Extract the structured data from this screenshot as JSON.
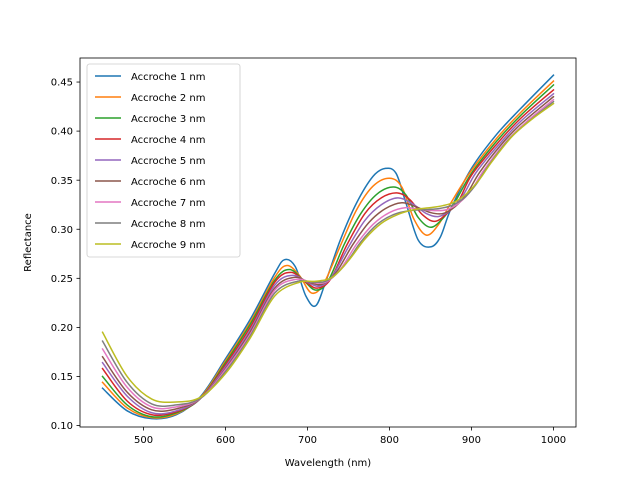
{
  "chart_data": {
    "type": "line",
    "title": "",
    "xlabel": "Wavelength (nm)",
    "ylabel": "Reflectance",
    "xlim": [
      422.5,
      1027.5
    ],
    "ylim": [
      0.0985,
      0.4745
    ],
    "xticks": [
      500,
      600,
      700,
      800,
      900,
      1000
    ],
    "yticks": [
      0.1,
      0.15,
      0.2,
      0.25,
      0.3,
      0.35,
      0.4,
      0.45
    ],
    "grid": false,
    "legend_position": "upper-left",
    "series": [
      {
        "name": "Accroche 1 nm",
        "color": "#1f77b4",
        "x": [
          450,
          480,
          510,
          540,
          570,
          600,
          630,
          660,
          672,
          685,
          698,
          710,
          722,
          740,
          760,
          780,
          795,
          808,
          820,
          835,
          850,
          862,
          875,
          900,
          930,
          960,
          1000
        ],
        "y": [
          0.138,
          0.115,
          0.107,
          0.111,
          0.13,
          0.168,
          0.208,
          0.255,
          0.269,
          0.262,
          0.232,
          0.222,
          0.246,
          0.289,
          0.327,
          0.354,
          0.362,
          0.357,
          0.327,
          0.289,
          0.282,
          0.292,
          0.321,
          0.362,
          0.396,
          0.423,
          0.457
        ]
      },
      {
        "name": "Accroche 2 nm",
        "color": "#ff7f0e",
        "x": [
          450,
          480,
          510,
          540,
          570,
          600,
          630,
          660,
          675,
          690,
          705,
          720,
          740,
          760,
          780,
          800,
          815,
          830,
          845,
          860,
          875,
          900,
          930,
          960,
          1000
        ],
        "y": [
          0.144,
          0.118,
          0.108,
          0.112,
          0.129,
          0.166,
          0.205,
          0.251,
          0.263,
          0.253,
          0.235,
          0.245,
          0.283,
          0.32,
          0.344,
          0.352,
          0.343,
          0.31,
          0.294,
          0.305,
          0.327,
          0.36,
          0.392,
          0.419,
          0.451
        ]
      },
      {
        "name": "Accroche 3 nm",
        "color": "#2ca02c",
        "x": [
          450,
          480,
          510,
          540,
          570,
          600,
          630,
          660,
          678,
          695,
          710,
          725,
          745,
          765,
          785,
          805,
          820,
          835,
          850,
          865,
          880,
          900,
          930,
          960,
          1000
        ],
        "y": [
          0.15,
          0.121,
          0.109,
          0.113,
          0.128,
          0.164,
          0.203,
          0.248,
          0.259,
          0.248,
          0.238,
          0.247,
          0.285,
          0.316,
          0.336,
          0.343,
          0.335,
          0.312,
          0.302,
          0.311,
          0.328,
          0.357,
          0.389,
          0.416,
          0.447
        ]
      },
      {
        "name": "Accroche 4 nm",
        "color": "#d62728",
        "x": [
          450,
          480,
          510,
          540,
          570,
          600,
          630,
          660,
          680,
          698,
          712,
          728,
          748,
          770,
          790,
          810,
          825,
          840,
          855,
          870,
          885,
          900,
          930,
          960,
          1000
        ],
        "y": [
          0.158,
          0.125,
          0.111,
          0.114,
          0.128,
          0.162,
          0.2,
          0.246,
          0.256,
          0.246,
          0.24,
          0.249,
          0.284,
          0.316,
          0.332,
          0.337,
          0.33,
          0.315,
          0.308,
          0.316,
          0.33,
          0.355,
          0.386,
          0.413,
          0.442
        ]
      },
      {
        "name": "Accroche 5 nm",
        "color": "#9467bd",
        "x": [
          450,
          480,
          510,
          540,
          570,
          600,
          630,
          660,
          682,
          700,
          715,
          730,
          750,
          770,
          790,
          810,
          828,
          845,
          860,
          875,
          890,
          905,
          930,
          960,
          1000
        ],
        "y": [
          0.164,
          0.13,
          0.113,
          0.115,
          0.128,
          0.16,
          0.197,
          0.243,
          0.253,
          0.246,
          0.242,
          0.252,
          0.282,
          0.309,
          0.325,
          0.332,
          0.326,
          0.316,
          0.313,
          0.32,
          0.335,
          0.357,
          0.383,
          0.41,
          0.438
        ]
      },
      {
        "name": "Accroche 6 nm",
        "color": "#8c564b",
        "x": [
          450,
          480,
          510,
          540,
          570,
          600,
          630,
          660,
          684,
          702,
          718,
          735,
          755,
          775,
          795,
          815,
          832,
          850,
          865,
          880,
          895,
          910,
          935,
          960,
          1000
        ],
        "y": [
          0.17,
          0.134,
          0.116,
          0.117,
          0.128,
          0.158,
          0.195,
          0.24,
          0.251,
          0.246,
          0.244,
          0.256,
          0.284,
          0.307,
          0.321,
          0.327,
          0.323,
          0.317,
          0.316,
          0.323,
          0.337,
          0.358,
          0.385,
          0.407,
          0.435
        ]
      },
      {
        "name": "Accroche 7 nm",
        "color": "#e377c2",
        "x": [
          450,
          480,
          510,
          540,
          570,
          600,
          630,
          660,
          686,
          705,
          722,
          740,
          760,
          780,
          800,
          820,
          838,
          855,
          870,
          885,
          900,
          915,
          940,
          965,
          1000
        ],
        "y": [
          0.178,
          0.139,
          0.119,
          0.119,
          0.128,
          0.157,
          0.193,
          0.238,
          0.249,
          0.246,
          0.246,
          0.259,
          0.285,
          0.305,
          0.317,
          0.322,
          0.32,
          0.319,
          0.32,
          0.327,
          0.34,
          0.36,
          0.387,
          0.408,
          0.432
        ]
      },
      {
        "name": "Accroche 8 nm",
        "color": "#7f7f7f",
        "x": [
          450,
          480,
          510,
          540,
          570,
          600,
          630,
          660,
          688,
          708,
          725,
          745,
          765,
          785,
          805,
          825,
          845,
          860,
          875,
          890,
          905,
          920,
          945,
          970,
          1000
        ],
        "y": [
          0.186,
          0.144,
          0.122,
          0.121,
          0.128,
          0.155,
          0.191,
          0.235,
          0.247,
          0.246,
          0.248,
          0.263,
          0.287,
          0.305,
          0.315,
          0.319,
          0.32,
          0.321,
          0.324,
          0.331,
          0.345,
          0.364,
          0.391,
          0.41,
          0.43
        ]
      },
      {
        "name": "Accroche 9 nm",
        "color": "#bcbd22",
        "x": [
          450,
          480,
          510,
          540,
          570,
          600,
          630,
          660,
          690,
          710,
          730,
          750,
          770,
          790,
          810,
          830,
          850,
          865,
          880,
          895,
          910,
          925,
          950,
          975,
          1000
        ],
        "y": [
          0.195,
          0.15,
          0.127,
          0.124,
          0.129,
          0.153,
          0.189,
          0.232,
          0.246,
          0.247,
          0.251,
          0.268,
          0.29,
          0.306,
          0.315,
          0.32,
          0.322,
          0.324,
          0.328,
          0.337,
          0.351,
          0.369,
          0.395,
          0.413,
          0.428
        ]
      }
    ]
  }
}
